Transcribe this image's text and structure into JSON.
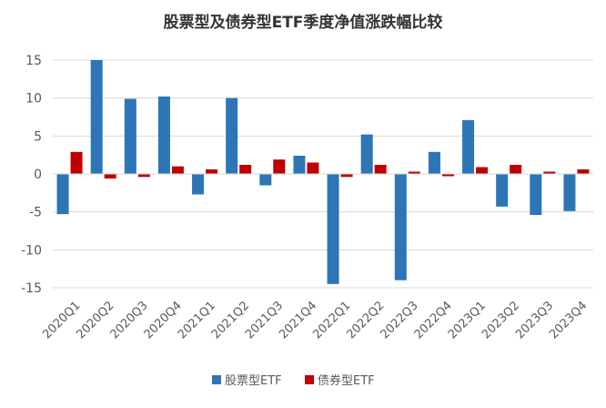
{
  "chart_data": {
    "type": "bar",
    "title": "股票型及债券型ETF季度净值涨跌幅比较",
    "xlabel": "",
    "ylabel": "",
    "ylim": [
      -15,
      15
    ],
    "yticks": [
      -15,
      -10,
      -5,
      0,
      5,
      10,
      15
    ],
    "grid": true,
    "legend_position": "bottom",
    "categories": [
      "2020Q1",
      "2020Q2",
      "2020Q3",
      "2020Q4",
      "2021Q1",
      "2021Q2",
      "2021Q3",
      "2021Q4",
      "2022Q1",
      "2022Q2",
      "2022Q3",
      "2022Q4",
      "2023Q1",
      "2023Q2",
      "2023Q3",
      "2023Q4"
    ],
    "series": [
      {
        "name": "股票型ETF",
        "color": "#2E75B6",
        "values": [
          -5.3,
          15.0,
          9.9,
          10.2,
          -2.7,
          10.0,
          -1.5,
          2.4,
          -14.5,
          5.2,
          -14.0,
          2.9,
          7.1,
          -4.3,
          -5.4,
          -4.9
        ]
      },
      {
        "name": "债券型ETF",
        "color": "#C00000",
        "values": [
          2.9,
          -0.6,
          -0.4,
          1.0,
          0.6,
          1.2,
          1.9,
          1.5,
          -0.4,
          1.2,
          0.3,
          -0.3,
          0.9,
          1.2,
          0.3,
          0.6
        ]
      }
    ]
  }
}
